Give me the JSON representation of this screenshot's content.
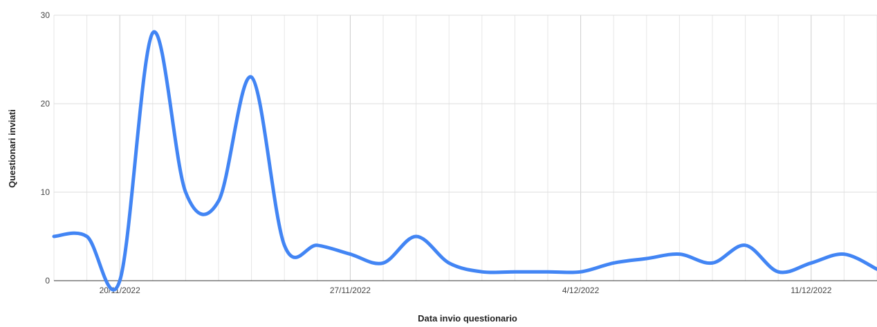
{
  "chart_data": {
    "type": "line",
    "xlabel": "Data invio questionario",
    "ylabel": "Questionari inviati",
    "ylim": [
      0,
      30
    ],
    "yticks": [
      "0",
      "10",
      "20",
      "30"
    ],
    "xticks": [
      "20/11/2022",
      "27/11/2022",
      "4/12/2022",
      "11/12/2022"
    ],
    "grid": true,
    "line_color": "#4285f4",
    "x": [
      "18/11/2022",
      "19/11/2022",
      "20/11/2022",
      "21/11/2022",
      "22/11/2022",
      "23/11/2022",
      "24/11/2022",
      "25/11/2022",
      "26/11/2022",
      "27/11/2022",
      "28/11/2022",
      "29/11/2022",
      "30/11/2022",
      "1/12/2022",
      "2/12/2022",
      "3/12/2022",
      "4/12/2022",
      "5/12/2022",
      "6/12/2022",
      "7/12/2022",
      "8/12/2022",
      "9/12/2022",
      "10/12/2022",
      "11/12/2022",
      "12/12/2022",
      "13/12/2022"
    ],
    "series": [
      {
        "values": [
          5,
          5,
          0,
          28,
          10,
          9,
          23,
          4,
          4,
          3,
          2,
          5,
          2,
          1,
          1,
          1,
          1,
          2,
          2.5,
          3,
          2,
          4,
          1,
          2,
          3,
          1.3
        ]
      }
    ]
  }
}
